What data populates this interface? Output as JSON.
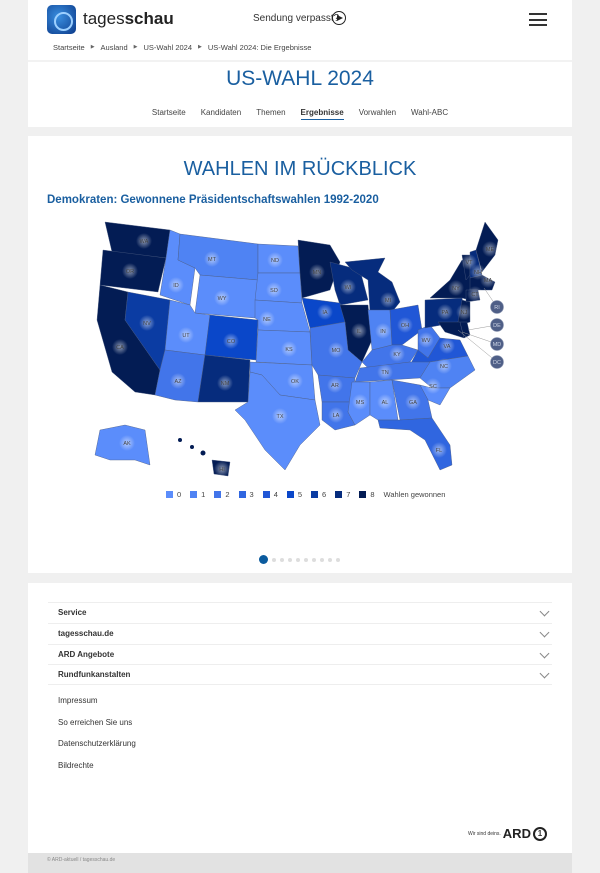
{
  "header": {
    "brand_light": "tages",
    "brand_bold": "schau",
    "sendung": "Sendung verpasst?",
    "breadcrumb": [
      "Startseite",
      "Ausland",
      "US-Wahl 2024",
      "US-Wahl 2024: Die Ergebnisse"
    ],
    "title": "US-WAHL 2024",
    "tabs": [
      "Startseite",
      "Kandidaten",
      "Themen",
      "Ergebnisse",
      "Vorwahlen",
      "Wahl-ABC"
    ],
    "active_tab": "Ergebnisse"
  },
  "main": {
    "heading": "WAHLEN IM RÜCKBLICK",
    "subheading": "Demokraten: Gewonnene Präsidentschaftswahlen 1992-2020",
    "slides": 10,
    "active_slide": 1
  },
  "chart_data": {
    "type": "choropleth-map",
    "title": "Demokraten: Gewonnene Präsidentschaftswahlen 1992-2020",
    "legend": {
      "labels": [
        "0",
        "1",
        "2",
        "3",
        "4",
        "5",
        "6",
        "7",
        "8"
      ],
      "suffix": "Wahlen gewonnen",
      "colors": [
        "#5b8dfb",
        "#4f83f3",
        "#4275ea",
        "#3066e0",
        "#2157d6",
        "#0a47c9",
        "#0b3ca3",
        "#062c7d",
        "#031c54"
      ]
    },
    "states": {
      "WA": 8,
      "OR": 8,
      "CA": 8,
      "NV": 6,
      "ID": 0,
      "MT": 1,
      "WY": 0,
      "UT": 0,
      "CO": 5,
      "AZ": 2,
      "NM": 7,
      "ND": 0,
      "SD": 0,
      "NE": 0,
      "KS": 0,
      "OK": 0,
      "TX": 0,
      "MN": 8,
      "WI": 7,
      "MI": 7,
      "IA": 5,
      "IL": 8,
      "IN": 1,
      "MO": 2,
      "OH": 4,
      "KY": 2,
      "WV": 2,
      "VA": 4,
      "TN": 2,
      "NC": 1,
      "SC": 0,
      "AR": 2,
      "LA": 2,
      "MS": 0,
      "AL": 0,
      "GA": 2,
      "FL": 3,
      "PA": 7,
      "NY": 8,
      "NJ": 8,
      "VT": 8,
      "NH": 7,
      "ME": 8,
      "MA": 8,
      "CT": 8,
      "RI": 8,
      "DE": 8,
      "MD": 8,
      "DC": 8,
      "AK": 0,
      "HI": 8
    }
  },
  "footer": {
    "sections": [
      "Service",
      "tagesschau.de",
      "ARD Angebote",
      "Rundfunkanstalten"
    ],
    "links": [
      "Impressum",
      "So erreichen Sie uns",
      "Datenschutzerklärung",
      "Bildrechte"
    ],
    "ard_slogan": "Wir sind deins.",
    "ard_logo": "ARD",
    "copyright": "© ARD-aktuell / tagesschau.de"
  }
}
